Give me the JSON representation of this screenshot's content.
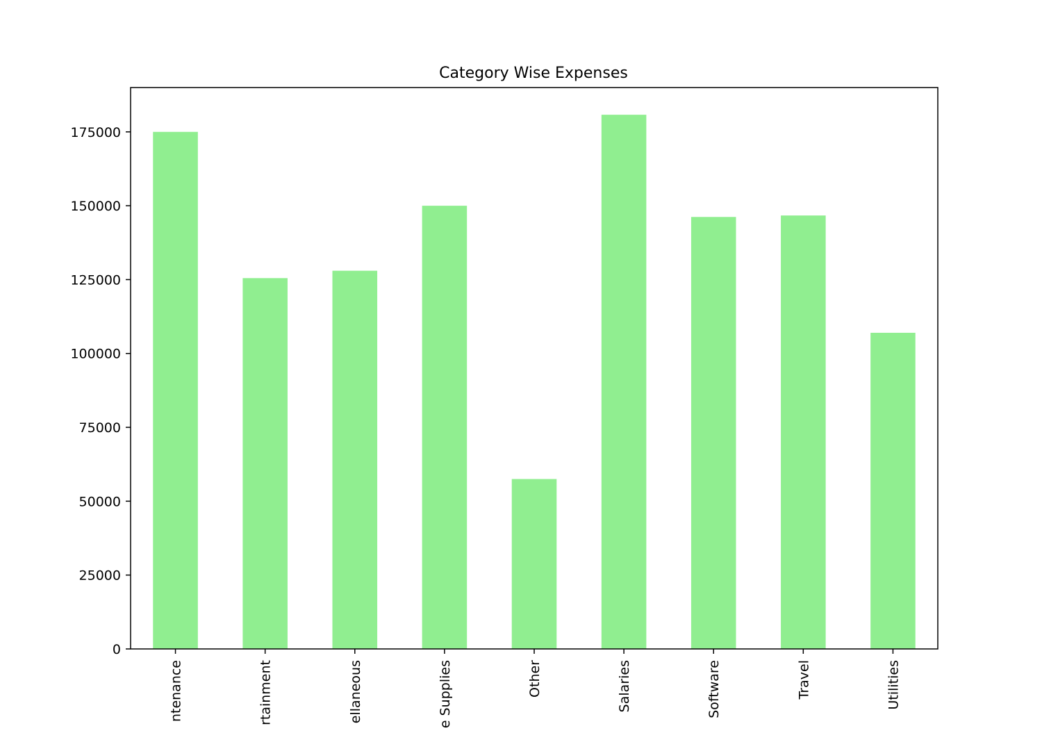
{
  "chart_data": {
    "type": "bar",
    "title": "Category Wise Expenses",
    "xlabel": "",
    "ylabel": "",
    "categories": [
      "Maintenance",
      "Entertainment",
      "Miscellaneous",
      "Office Supplies",
      "Other",
      "Salaries",
      "Software",
      "Travel",
      "Utilities"
    ],
    "visible_tick_labels": [
      "ntenance",
      "rtainment",
      "ellaneous",
      "e Supplies",
      "Other",
      "Salaries",
      "Software",
      "Travel",
      "Utilities"
    ],
    "values": [
      175000,
      125500,
      128000,
      150000,
      57500,
      180800,
      146200,
      146700,
      107000
    ],
    "ylim": [
      0,
      190000
    ],
    "yticks": [
      0,
      25000,
      50000,
      75000,
      100000,
      125000,
      150000,
      175000
    ],
    "ytick_labels": [
      "0",
      "25000",
      "50000",
      "75000",
      "100000",
      "125000",
      "150000",
      "175000"
    ],
    "bar_color": "#90ee90",
    "grid": false,
    "legend": "none"
  }
}
